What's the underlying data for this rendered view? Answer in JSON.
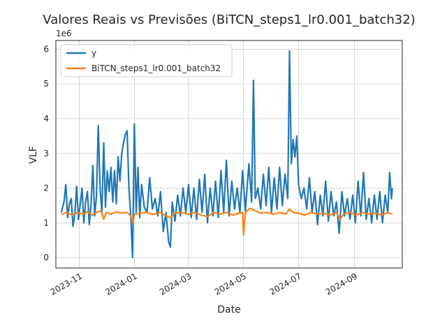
{
  "chart_data": {
    "type": "line",
    "title": "Valores Reais vs Previsões (BiTCN_steps1_lr0.001_batch32)",
    "xlabel": "Date",
    "ylabel": "VLF",
    "y_offset_label": "1e6",
    "xlim": [
      "2023-10-06",
      "2024-10-24"
    ],
    "ylim": [
      -0.3,
      6.25
    ],
    "y_unit_multiplier": 1000000,
    "x_ticks": [
      "2023-11",
      "2024-01",
      "2024-03",
      "2024-05",
      "2024-07",
      "2024-09"
    ],
    "x_tick_dates": [
      "2023-11-01",
      "2024-01-01",
      "2024-03-01",
      "2024-05-01",
      "2024-07-01",
      "2024-09-01"
    ],
    "y_ticks": [
      0,
      1,
      2,
      3,
      4,
      5,
      6
    ],
    "y_tick_labels": [
      "0",
      "1",
      "2",
      "3",
      "4",
      "5",
      "6"
    ],
    "grid": true,
    "legend_position": "top-left",
    "series": [
      {
        "name": "y",
        "color": "#1f77b4",
        "points": [
          [
            "2023-10-12",
            1.3
          ],
          [
            "2023-10-15",
            1.6
          ],
          [
            "2023-10-17",
            2.1
          ],
          [
            "2023-10-19",
            1.15
          ],
          [
            "2023-10-21",
            1.55
          ],
          [
            "2023-10-23",
            1.7
          ],
          [
            "2023-10-25",
            0.9
          ],
          [
            "2023-10-27",
            1.25
          ],
          [
            "2023-10-29",
            2.05
          ],
          [
            "2023-10-31",
            1.1
          ],
          [
            "2023-11-02",
            1.55
          ],
          [
            "2023-11-04",
            2.0
          ],
          [
            "2023-11-06",
            1.0
          ],
          [
            "2023-11-08",
            1.6
          ],
          [
            "2023-11-10",
            1.9
          ],
          [
            "2023-11-12",
            0.95
          ],
          [
            "2023-11-14",
            1.55
          ],
          [
            "2023-11-16",
            2.65
          ],
          [
            "2023-11-18",
            1.2
          ],
          [
            "2023-11-20",
            1.75
          ],
          [
            "2023-11-22",
            3.8
          ],
          [
            "2023-11-24",
            2.0
          ],
          [
            "2023-11-26",
            1.3
          ],
          [
            "2023-11-28",
            3.3
          ],
          [
            "2023-11-30",
            1.45
          ],
          [
            "2023-12-02",
            2.5
          ],
          [
            "2023-12-04",
            1.9
          ],
          [
            "2023-12-06",
            2.6
          ],
          [
            "2023-12-08",
            1.6
          ],
          [
            "2023-12-10",
            2.5
          ],
          [
            "2023-12-12",
            1.55
          ],
          [
            "2023-12-14",
            2.9
          ],
          [
            "2023-12-16",
            2.2
          ],
          [
            "2023-12-18",
            3.0
          ],
          [
            "2023-12-20",
            3.3
          ],
          [
            "2023-12-22",
            3.55
          ],
          [
            "2023-12-24",
            3.65
          ],
          [
            "2023-12-26",
            2.0
          ],
          [
            "2023-12-28",
            1.2
          ],
          [
            "2023-12-30",
            0.0
          ],
          [
            "2024-01-01",
            3.85
          ],
          [
            "2024-01-03",
            1.3
          ],
          [
            "2024-01-05",
            2.6
          ],
          [
            "2024-01-07",
            1.15
          ],
          [
            "2024-01-09",
            2.1
          ],
          [
            "2024-01-12",
            1.45
          ],
          [
            "2024-01-15",
            1.3
          ],
          [
            "2024-01-18",
            2.3
          ],
          [
            "2024-01-21",
            1.4
          ],
          [
            "2024-01-24",
            1.7
          ],
          [
            "2024-01-27",
            1.2
          ],
          [
            "2024-01-30",
            1.9
          ],
          [
            "2024-02-02",
            0.75
          ],
          [
            "2024-02-05",
            1.3
          ],
          [
            "2024-02-08",
            0.45
          ],
          [
            "2024-02-10",
            0.3
          ],
          [
            "2024-02-12",
            1.6
          ],
          [
            "2024-02-15",
            1.05
          ],
          [
            "2024-02-18",
            1.8
          ],
          [
            "2024-02-21",
            1.2
          ],
          [
            "2024-02-24",
            2.0
          ],
          [
            "2024-02-27",
            1.3
          ],
          [
            "2024-03-01",
            2.1
          ],
          [
            "2024-03-04",
            1.15
          ],
          [
            "2024-03-07",
            2.0
          ],
          [
            "2024-03-10",
            1.1
          ],
          [
            "2024-03-13",
            2.25
          ],
          [
            "2024-03-16",
            1.3
          ],
          [
            "2024-03-19",
            2.4
          ],
          [
            "2024-03-22",
            1.0
          ],
          [
            "2024-03-25",
            2.0
          ],
          [
            "2024-03-28",
            1.2
          ],
          [
            "2024-03-31",
            2.2
          ],
          [
            "2024-04-03",
            1.15
          ],
          [
            "2024-04-06",
            2.5
          ],
          [
            "2024-04-09",
            1.3
          ],
          [
            "2024-04-12",
            2.8
          ],
          [
            "2024-04-15",
            1.2
          ],
          [
            "2024-04-18",
            2.2
          ],
          [
            "2024-04-21",
            1.4
          ],
          [
            "2024-04-24",
            2.0
          ],
          [
            "2024-04-27",
            1.3
          ],
          [
            "2024-04-30",
            2.5
          ],
          [
            "2024-05-03",
            1.35
          ],
          [
            "2024-05-07",
            2.7
          ],
          [
            "2024-05-10",
            1.6
          ],
          [
            "2024-05-12",
            5.1
          ],
          [
            "2024-05-14",
            1.7
          ],
          [
            "2024-05-17",
            2.0
          ],
          [
            "2024-05-20",
            1.4
          ],
          [
            "2024-05-23",
            2.4
          ],
          [
            "2024-05-26",
            1.5
          ],
          [
            "2024-05-29",
            2.6
          ],
          [
            "2024-06-01",
            1.3
          ],
          [
            "2024-06-04",
            2.3
          ],
          [
            "2024-06-07",
            1.4
          ],
          [
            "2024-06-10",
            2.6
          ],
          [
            "2024-06-13",
            1.5
          ],
          [
            "2024-06-16",
            2.4
          ],
          [
            "2024-06-19",
            1.7
          ],
          [
            "2024-06-21",
            5.95
          ],
          [
            "2024-06-23",
            2.7
          ],
          [
            "2024-06-25",
            3.4
          ],
          [
            "2024-06-27",
            2.9
          ],
          [
            "2024-06-29",
            3.5
          ],
          [
            "2024-07-01",
            2.1
          ],
          [
            "2024-07-04",
            1.7
          ],
          [
            "2024-07-07",
            2.0
          ],
          [
            "2024-07-10",
            1.4
          ],
          [
            "2024-07-13",
            2.3
          ],
          [
            "2024-07-16",
            1.3
          ],
          [
            "2024-07-19",
            1.9
          ],
          [
            "2024-07-22",
            0.95
          ],
          [
            "2024-07-25",
            1.8
          ],
          [
            "2024-07-28",
            1.2
          ],
          [
            "2024-07-31",
            2.2
          ],
          [
            "2024-08-03",
            1.05
          ],
          [
            "2024-08-06",
            1.9
          ],
          [
            "2024-08-09",
            1.2
          ],
          [
            "2024-08-12",
            1.6
          ],
          [
            "2024-08-15",
            0.7
          ],
          [
            "2024-08-18",
            1.9
          ],
          [
            "2024-08-21",
            1.2
          ],
          [
            "2024-08-24",
            1.7
          ],
          [
            "2024-08-27",
            1.1
          ],
          [
            "2024-08-30",
            1.8
          ],
          [
            "2024-09-02",
            1.0
          ],
          [
            "2024-09-05",
            2.2
          ],
          [
            "2024-09-08",
            1.2
          ],
          [
            "2024-09-11",
            2.45
          ],
          [
            "2024-09-14",
            1.1
          ],
          [
            "2024-09-17",
            1.7
          ],
          [
            "2024-09-20",
            1.0
          ],
          [
            "2024-09-23",
            1.8
          ],
          [
            "2024-09-26",
            1.1
          ],
          [
            "2024-09-29",
            1.9
          ],
          [
            "2024-10-02",
            1.0
          ],
          [
            "2024-10-05",
            1.8
          ],
          [
            "2024-10-08",
            1.3
          ],
          [
            "2024-10-10",
            2.45
          ],
          [
            "2024-10-12",
            1.7
          ],
          [
            "2024-10-13",
            2.0
          ]
        ]
      },
      {
        "name": "BiTCN_steps1_lr0.001_batch32",
        "color": "#ff7f0e",
        "points": [
          [
            "2023-10-12",
            1.25
          ],
          [
            "2023-10-18",
            1.3
          ],
          [
            "2023-10-24",
            1.22
          ],
          [
            "2023-10-30",
            1.3
          ],
          [
            "2023-11-05",
            1.25
          ],
          [
            "2023-11-10",
            1.32
          ],
          [
            "2023-11-15",
            1.22
          ],
          [
            "2023-11-20",
            1.3
          ],
          [
            "2023-11-25",
            1.35
          ],
          [
            "2023-11-28",
            1.1
          ],
          [
            "2023-12-01",
            1.3
          ],
          [
            "2023-12-06",
            1.25
          ],
          [
            "2023-12-12",
            1.32
          ],
          [
            "2023-12-18",
            1.28
          ],
          [
            "2023-12-24",
            1.3
          ],
          [
            "2023-12-28",
            1.2
          ],
          [
            "2023-12-30",
            1.0
          ],
          [
            "2024-01-01",
            1.25
          ],
          [
            "2024-01-08",
            1.28
          ],
          [
            "2024-01-15",
            1.3
          ],
          [
            "2024-01-22",
            1.24
          ],
          [
            "2024-01-29",
            1.3
          ],
          [
            "2024-02-05",
            1.2
          ],
          [
            "2024-02-10",
            1.15
          ],
          [
            "2024-02-15",
            1.28
          ],
          [
            "2024-02-22",
            1.3
          ],
          [
            "2024-03-01",
            1.25
          ],
          [
            "2024-03-08",
            1.3
          ],
          [
            "2024-03-15",
            1.22
          ],
          [
            "2024-03-22",
            1.18
          ],
          [
            "2024-03-29",
            1.3
          ],
          [
            "2024-04-05",
            1.25
          ],
          [
            "2024-04-12",
            1.3
          ],
          [
            "2024-04-19",
            1.22
          ],
          [
            "2024-04-26",
            1.28
          ],
          [
            "2024-04-30",
            1.3
          ],
          [
            "2024-05-01",
            0.65
          ],
          [
            "2024-05-03",
            1.3
          ],
          [
            "2024-05-08",
            1.42
          ],
          [
            "2024-05-14",
            1.35
          ],
          [
            "2024-05-20",
            1.28
          ],
          [
            "2024-05-27",
            1.3
          ],
          [
            "2024-06-03",
            1.25
          ],
          [
            "2024-06-10",
            1.3
          ],
          [
            "2024-06-17",
            1.25
          ],
          [
            "2024-06-21",
            1.4
          ],
          [
            "2024-06-25",
            1.3
          ],
          [
            "2024-07-01",
            1.28
          ],
          [
            "2024-07-08",
            1.22
          ],
          [
            "2024-07-15",
            1.3
          ],
          [
            "2024-07-22",
            1.25
          ],
          [
            "2024-07-29",
            1.28
          ],
          [
            "2024-08-05",
            1.22
          ],
          [
            "2024-08-12",
            1.3
          ],
          [
            "2024-08-16",
            1.1
          ],
          [
            "2024-08-20",
            1.25
          ],
          [
            "2024-08-27",
            1.3
          ],
          [
            "2024-09-03",
            1.22
          ],
          [
            "2024-09-10",
            1.3
          ],
          [
            "2024-09-17",
            1.25
          ],
          [
            "2024-09-24",
            1.28
          ],
          [
            "2024-10-01",
            1.22
          ],
          [
            "2024-10-08",
            1.3
          ],
          [
            "2024-10-13",
            1.25
          ]
        ]
      }
    ]
  }
}
